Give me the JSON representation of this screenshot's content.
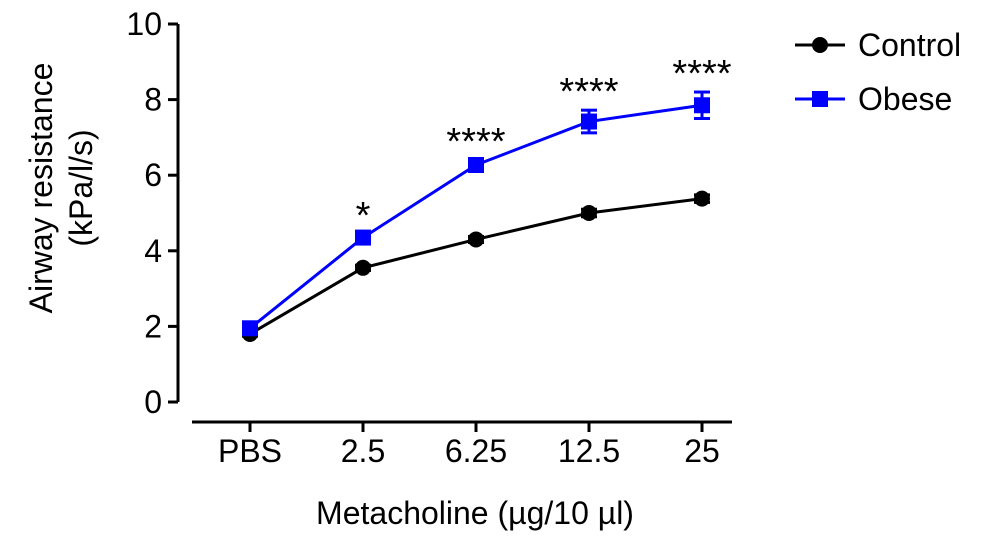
{
  "chart_data": {
    "type": "line",
    "title": "",
    "xlabel": "Metacholine (µg/10 µl)",
    "ylabel_lines": [
      "Airway resistance",
      "(kPa/l/s)"
    ],
    "categories": [
      "PBS",
      "2.5",
      "6.25",
      "12.5",
      "25"
    ],
    "ylim": [
      0,
      10
    ],
    "yticks": [
      "0",
      "2",
      "4",
      "6",
      "8",
      "10"
    ],
    "grid": false,
    "legend_position": "top-right",
    "series": [
      {
        "name": "Control",
        "color": "#000000",
        "marker": "circle",
        "values": [
          1.8,
          3.55,
          4.3,
          5.0,
          5.38
        ],
        "errors": [
          0.06,
          0.07,
          0.08,
          0.1,
          0.1
        ]
      },
      {
        "name": "Obese",
        "color": "#0000ff",
        "marker": "square",
        "values": [
          1.95,
          4.35,
          6.27,
          7.42,
          7.85
        ],
        "errors": [
          0.06,
          0.1,
          0.13,
          0.3,
          0.35
        ]
      }
    ],
    "annotations": [
      {
        "category": "2.5",
        "text": "*"
      },
      {
        "category": "6.25",
        "text": "****"
      },
      {
        "category": "12.5",
        "text": "****"
      },
      {
        "category": "25",
        "text": "****"
      }
    ]
  }
}
